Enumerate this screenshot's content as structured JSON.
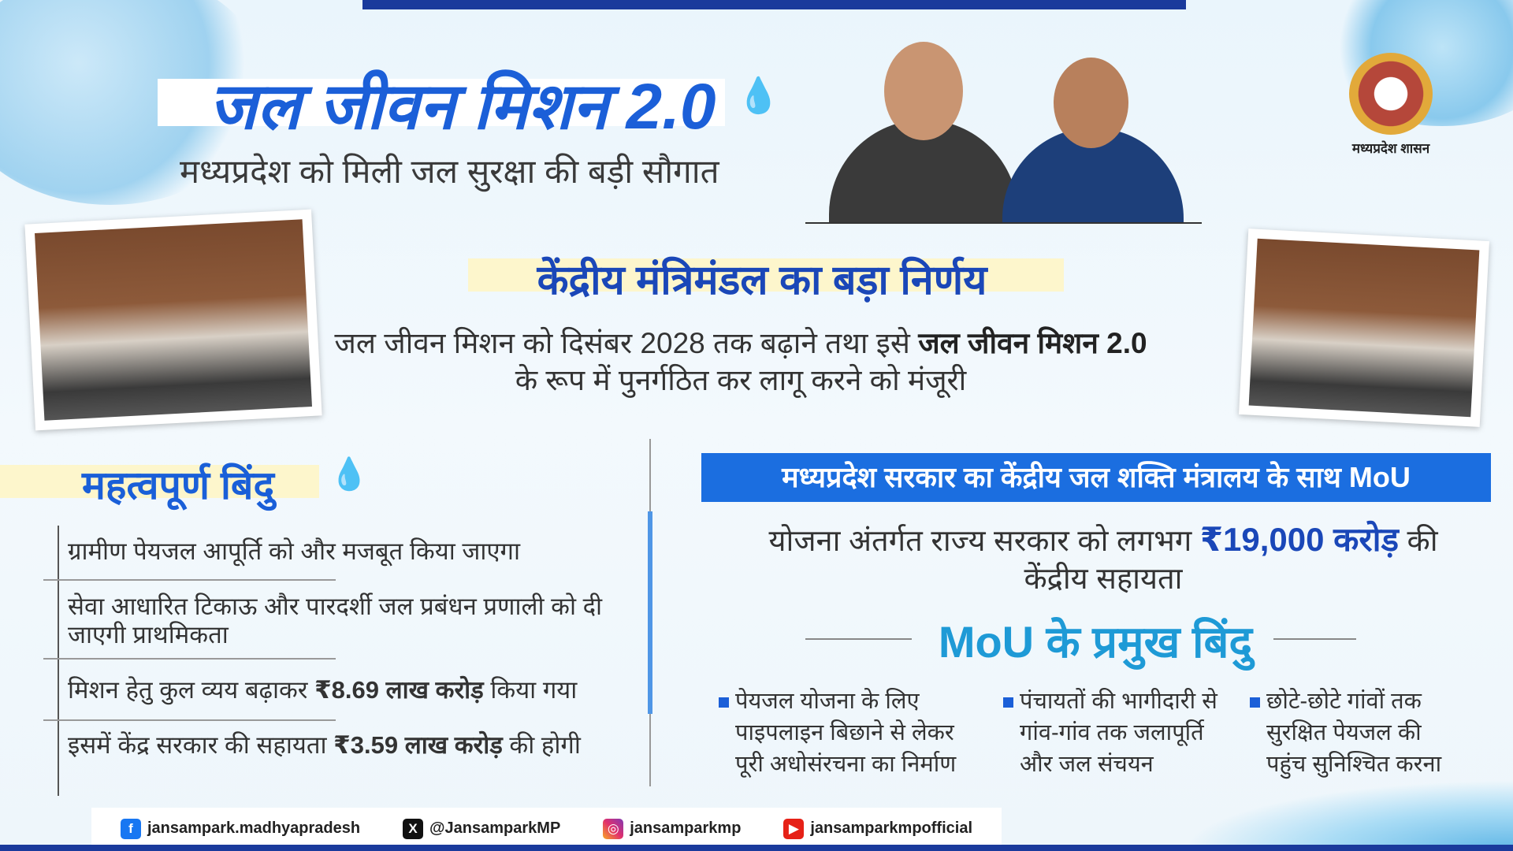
{
  "colors": {
    "primary_blue": "#1b5fd8",
    "dark_blue": "#1a3a9c",
    "banner_blue": "#1b6ee0",
    "highlight_yellow": "#fdf6cc",
    "mou_heading": "#1e9ad6"
  },
  "header": {
    "title": "जल जीवन मिशन 2.0",
    "subtitle": "मध्यप्रदेश को मिली जल सुरक्षा की बड़ी सौगात",
    "emblem_label": "मध्यप्रदेश शासन",
    "drops_icon": "water-drops-icon"
  },
  "decision": {
    "heading": "केंद्रीय मंत्रिमंडल का बड़ा निर्णय",
    "line1_pre": "जल जीवन मिशन को दिसंबर 2028 तक बढ़ाने तथा इसे ",
    "line1_bold": "जल जीवन मिशन 2.0",
    "line2": "के रूप में पुनर्गठित कर लागू करने को मंजूरी"
  },
  "key_points": {
    "heading": "महत्वपूर्ण बिंदु",
    "items": [
      {
        "pre": "ग्रामीण पेयजल आपूर्ति को और मजबूत किया जाएगा",
        "bold": "",
        "post": ""
      },
      {
        "pre": "सेवा आधारित टिकाऊ और पारदर्शी जल प्रबंधन प्रणाली को दी जाएगी प्राथमिकता",
        "bold": "",
        "post": ""
      },
      {
        "pre": "मिशन हेतु कुल व्यय बढ़ाकर ",
        "bold": "₹8.69 लाख करोड़",
        "post": " किया गया"
      },
      {
        "pre": "इसमें केंद्र सरकार की सहायता ",
        "bold": "₹3.59 लाख करोड़",
        "post": " की होगी"
      }
    ]
  },
  "mou": {
    "banner": "मध्यप्रदेश सरकार का केंद्रीय जल शक्ति मंत्रालय के साथ MoU",
    "aid_pre": "योजना अंतर्गत राज्य सरकार को लगभग ",
    "aid_bold": "₹19,000 करोड़",
    "aid_post": " की",
    "aid_line2": "केंद्रीय सहायता",
    "points_heading": "MoU के प्रमुख बिंदु",
    "points": [
      [
        "पेयजल योजना के लिए",
        "पाइपलाइन बिछाने से लेकर",
        "पूरी अधोसंरचना का निर्माण"
      ],
      [
        "पंचायतों की भागीदारी से",
        "गांव-गांव तक जलापूर्ति",
        "और जल संचयन"
      ],
      [
        "छोटे-छोटे गांवों तक",
        "सुरक्षित पेयजल की",
        "पहुंच सुनिश्चित करना"
      ]
    ]
  },
  "footer": {
    "facebook": "jansampark.madhyapradesh",
    "x": "@JansamparkMP",
    "instagram": "jansamparkmp",
    "youtube": "jansamparkmpofficial"
  }
}
